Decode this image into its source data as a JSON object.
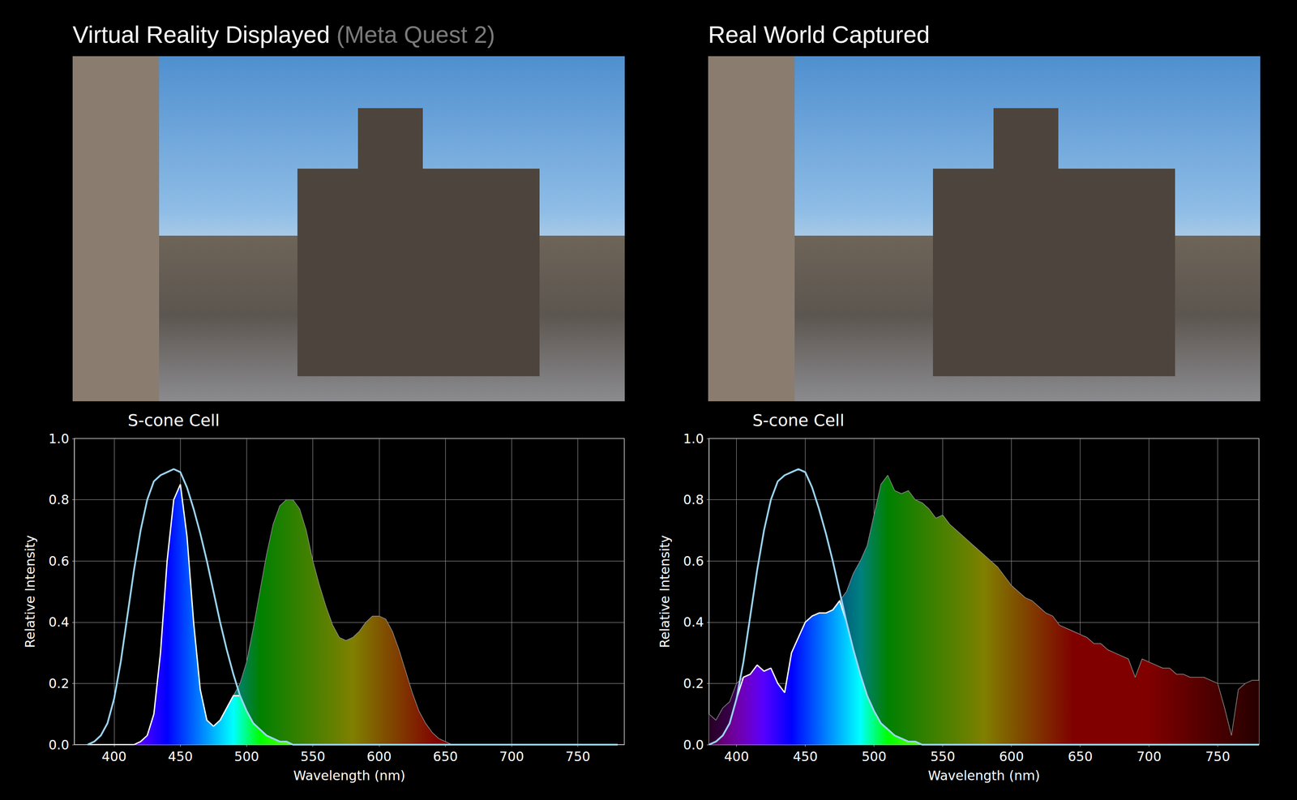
{
  "chart_data": [
    {
      "type": "line",
      "title": "Virtual Reality Displayed",
      "subtitle": "(Meta Quest 2)",
      "xlabel": "Wavelength (nm)",
      "ylabel": "Relative Intensity",
      "xlim": [
        370,
        785
      ],
      "xticks": [
        400,
        450,
        500,
        550,
        600,
        650,
        700,
        750
      ],
      "ylim": [
        0,
        1
      ],
      "yticks": [
        {
          "value": 0,
          "label": "0.0"
        },
        {
          "value": 0.2,
          "label": "0.2"
        },
        {
          "value": 0.4,
          "label": "0.4"
        },
        {
          "value": 0.6,
          "label": "0.6"
        },
        {
          "value": 0.8,
          "label": "0.8"
        },
        {
          "value": 1,
          "label": "1.0"
        }
      ],
      "grid": true,
      "x": [
        380,
        385,
        390,
        395,
        400,
        405,
        410,
        415,
        420,
        425,
        430,
        435,
        440,
        445,
        450,
        455,
        460,
        465,
        470,
        475,
        480,
        485,
        490,
        495,
        500,
        505,
        510,
        515,
        520,
        525,
        530,
        535,
        540,
        545,
        550,
        555,
        560,
        565,
        570,
        575,
        580,
        585,
        590,
        595,
        600,
        605,
        610,
        615,
        620,
        625,
        630,
        635,
        640,
        645,
        650,
        655,
        660,
        665,
        670,
        675,
        680,
        685,
        690,
        695,
        700,
        705,
        710,
        715,
        720,
        725,
        730,
        735,
        740,
        745,
        750,
        755,
        760,
        765,
        770,
        775,
        780
      ],
      "series": [
        {
          "type": "area",
          "color": "#8c8c8c",
          "values": [
            0,
            0,
            0,
            0,
            0,
            0,
            0,
            0,
            0.01,
            0.03,
            0.1,
            0.3,
            0.6,
            0.8,
            0.85,
            0.68,
            0.4,
            0.18,
            0.08,
            0.06,
            0.08,
            0.12,
            0.16,
            0.2,
            0.27,
            0.38,
            0.5,
            0.62,
            0.72,
            0.78,
            0.8,
            0.8,
            0.77,
            0.7,
            0.6,
            0.52,
            0.45,
            0.39,
            0.35,
            0.34,
            0.35,
            0.37,
            0.4,
            0.42,
            0.42,
            0.41,
            0.37,
            0.31,
            0.24,
            0.17,
            0.11,
            0.07,
            0.04,
            0.02,
            0.01,
            0,
            0,
            0,
            0,
            0,
            0,
            0,
            0,
            0,
            0,
            0,
            0,
            0,
            0,
            0,
            0,
            0,
            0,
            0,
            0,
            0,
            0,
            0,
            0,
            0,
            0
          ]
        },
        {
          "type": "area",
          "color": "#ffffff",
          "values": [
            0,
            0,
            0,
            0,
            0,
            0,
            0,
            0,
            0.01,
            0.03,
            0.1,
            0.3,
            0.6,
            0.8,
            0.85,
            0.68,
            0.4,
            0.18,
            0.08,
            0.06,
            0.08,
            0.12,
            0.16,
            0.16,
            0.11,
            0.07,
            0.05,
            0.03,
            0.02,
            0.01,
            0.01,
            0,
            0,
            0,
            0,
            0,
            0,
            0,
            0,
            0,
            0,
            0,
            0,
            0,
            0,
            0,
            0,
            0,
            0,
            0,
            0,
            0,
            0,
            0,
            0,
            0,
            0,
            0,
            0,
            0,
            0,
            0,
            0,
            0,
            0,
            0,
            0,
            0,
            0,
            0,
            0,
            0,
            0,
            0,
            0,
            0,
            0,
            0,
            0,
            0,
            0
          ]
        },
        {
          "type": "line",
          "name": "S-cone Cell",
          "color": "#9ad4f2",
          "values": [
            0,
            0.01,
            0.03,
            0.07,
            0.15,
            0.27,
            0.42,
            0.57,
            0.7,
            0.8,
            0.86,
            0.88,
            0.89,
            0.9,
            0.89,
            0.84,
            0.77,
            0.69,
            0.6,
            0.5,
            0.4,
            0.31,
            0.23,
            0.16,
            0.11,
            0.07,
            0.05,
            0.03,
            0.02,
            0.01,
            0.01,
            0,
            0,
            0,
            0,
            0,
            0,
            0,
            0,
            0,
            0,
            0,
            0,
            0,
            0,
            0,
            0,
            0,
            0,
            0,
            0,
            0,
            0,
            0,
            0,
            0,
            0,
            0,
            0,
            0,
            0,
            0,
            0,
            0,
            0,
            0,
            0,
            0,
            0,
            0,
            0,
            0,
            0,
            0,
            0,
            0,
            0,
            0,
            0,
            0,
            0
          ]
        }
      ]
    },
    {
      "type": "line",
      "title": "Real World Captured",
      "xlabel": "Wavelength (nm)",
      "ylabel": "Relative Intensity",
      "xlim": [
        380,
        780
      ],
      "xticks": [
        400,
        450,
        500,
        550,
        600,
        650,
        700,
        750
      ],
      "ylim": [
        0,
        1
      ],
      "yticks": [
        {
          "value": 0,
          "label": "0.0"
        },
        {
          "value": 0.2,
          "label": "0.2"
        },
        {
          "value": 0.4,
          "label": "0.4"
        },
        {
          "value": 0.6,
          "label": "0.6"
        },
        {
          "value": 0.8,
          "label": "0.8"
        },
        {
          "value": 1,
          "label": "1.0"
        }
      ],
      "grid": true,
      "x": [
        380,
        385,
        390,
        395,
        400,
        405,
        410,
        415,
        420,
        425,
        430,
        435,
        440,
        445,
        450,
        455,
        460,
        465,
        470,
        475,
        480,
        485,
        490,
        495,
        500,
        505,
        510,
        515,
        520,
        525,
        530,
        535,
        540,
        545,
        550,
        555,
        560,
        565,
        570,
        575,
        580,
        585,
        590,
        595,
        600,
        605,
        610,
        615,
        620,
        625,
        630,
        635,
        640,
        645,
        650,
        655,
        660,
        665,
        670,
        675,
        680,
        685,
        690,
        695,
        700,
        705,
        710,
        715,
        720,
        725,
        730,
        735,
        740,
        745,
        750,
        755,
        760,
        765,
        770,
        775,
        780
      ],
      "series": [
        {
          "type": "area",
          "color": "#8c8c8c",
          "values": [
            0.1,
            0.08,
            0.12,
            0.14,
            0.2,
            0.22,
            0.23,
            0.26,
            0.24,
            0.25,
            0.2,
            0.17,
            0.3,
            0.35,
            0.4,
            0.42,
            0.43,
            0.43,
            0.44,
            0.47,
            0.5,
            0.56,
            0.6,
            0.65,
            0.75,
            0.85,
            0.88,
            0.83,
            0.82,
            0.83,
            0.8,
            0.79,
            0.77,
            0.74,
            0.75,
            0.72,
            0.7,
            0.68,
            0.66,
            0.64,
            0.62,
            0.6,
            0.58,
            0.55,
            0.52,
            0.5,
            0.48,
            0.47,
            0.45,
            0.43,
            0.42,
            0.39,
            0.38,
            0.37,
            0.36,
            0.35,
            0.33,
            0.33,
            0.31,
            0.3,
            0.29,
            0.28,
            0.22,
            0.28,
            0.27,
            0.26,
            0.25,
            0.25,
            0.23,
            0.23,
            0.22,
            0.22,
            0.22,
            0.21,
            0.2,
            0.12,
            0.03,
            0.18,
            0.2,
            0.21,
            0.21
          ]
        },
        {
          "type": "area",
          "color": "#ffffff",
          "values": [
            0,
            0.01,
            0.03,
            0.07,
            0.15,
            0.22,
            0.23,
            0.26,
            0.24,
            0.25,
            0.2,
            0.17,
            0.3,
            0.35,
            0.4,
            0.42,
            0.43,
            0.43,
            0.44,
            0.47,
            0.4,
            0.31,
            0.23,
            0.16,
            0.11,
            0.07,
            0.05,
            0.03,
            0.02,
            0.01,
            0.01,
            0,
            0,
            0,
            0,
            0,
            0,
            0,
            0,
            0,
            0,
            0,
            0,
            0,
            0,
            0,
            0,
            0,
            0,
            0,
            0,
            0,
            0,
            0,
            0,
            0,
            0,
            0,
            0,
            0,
            0,
            0,
            0,
            0,
            0,
            0,
            0,
            0,
            0,
            0,
            0,
            0,
            0,
            0,
            0,
            0,
            0,
            0,
            0,
            0,
            0
          ]
        },
        {
          "type": "line",
          "name": "S-cone Cell",
          "color": "#9ad4f2",
          "values": [
            0,
            0.01,
            0.03,
            0.07,
            0.15,
            0.27,
            0.42,
            0.57,
            0.7,
            0.8,
            0.86,
            0.88,
            0.89,
            0.9,
            0.89,
            0.84,
            0.77,
            0.69,
            0.6,
            0.5,
            0.4,
            0.31,
            0.23,
            0.16,
            0.11,
            0.07,
            0.05,
            0.03,
            0.02,
            0.01,
            0.01,
            0,
            0,
            0,
            0,
            0,
            0,
            0,
            0,
            0,
            0,
            0,
            0,
            0,
            0,
            0,
            0,
            0,
            0,
            0,
            0,
            0,
            0,
            0,
            0,
            0,
            0,
            0,
            0,
            0,
            0,
            0,
            0,
            0,
            0,
            0,
            0,
            0,
            0,
            0,
            0,
            0,
            0,
            0,
            0,
            0,
            0,
            0,
            0,
            0,
            0
          ]
        }
      ]
    }
  ]
}
